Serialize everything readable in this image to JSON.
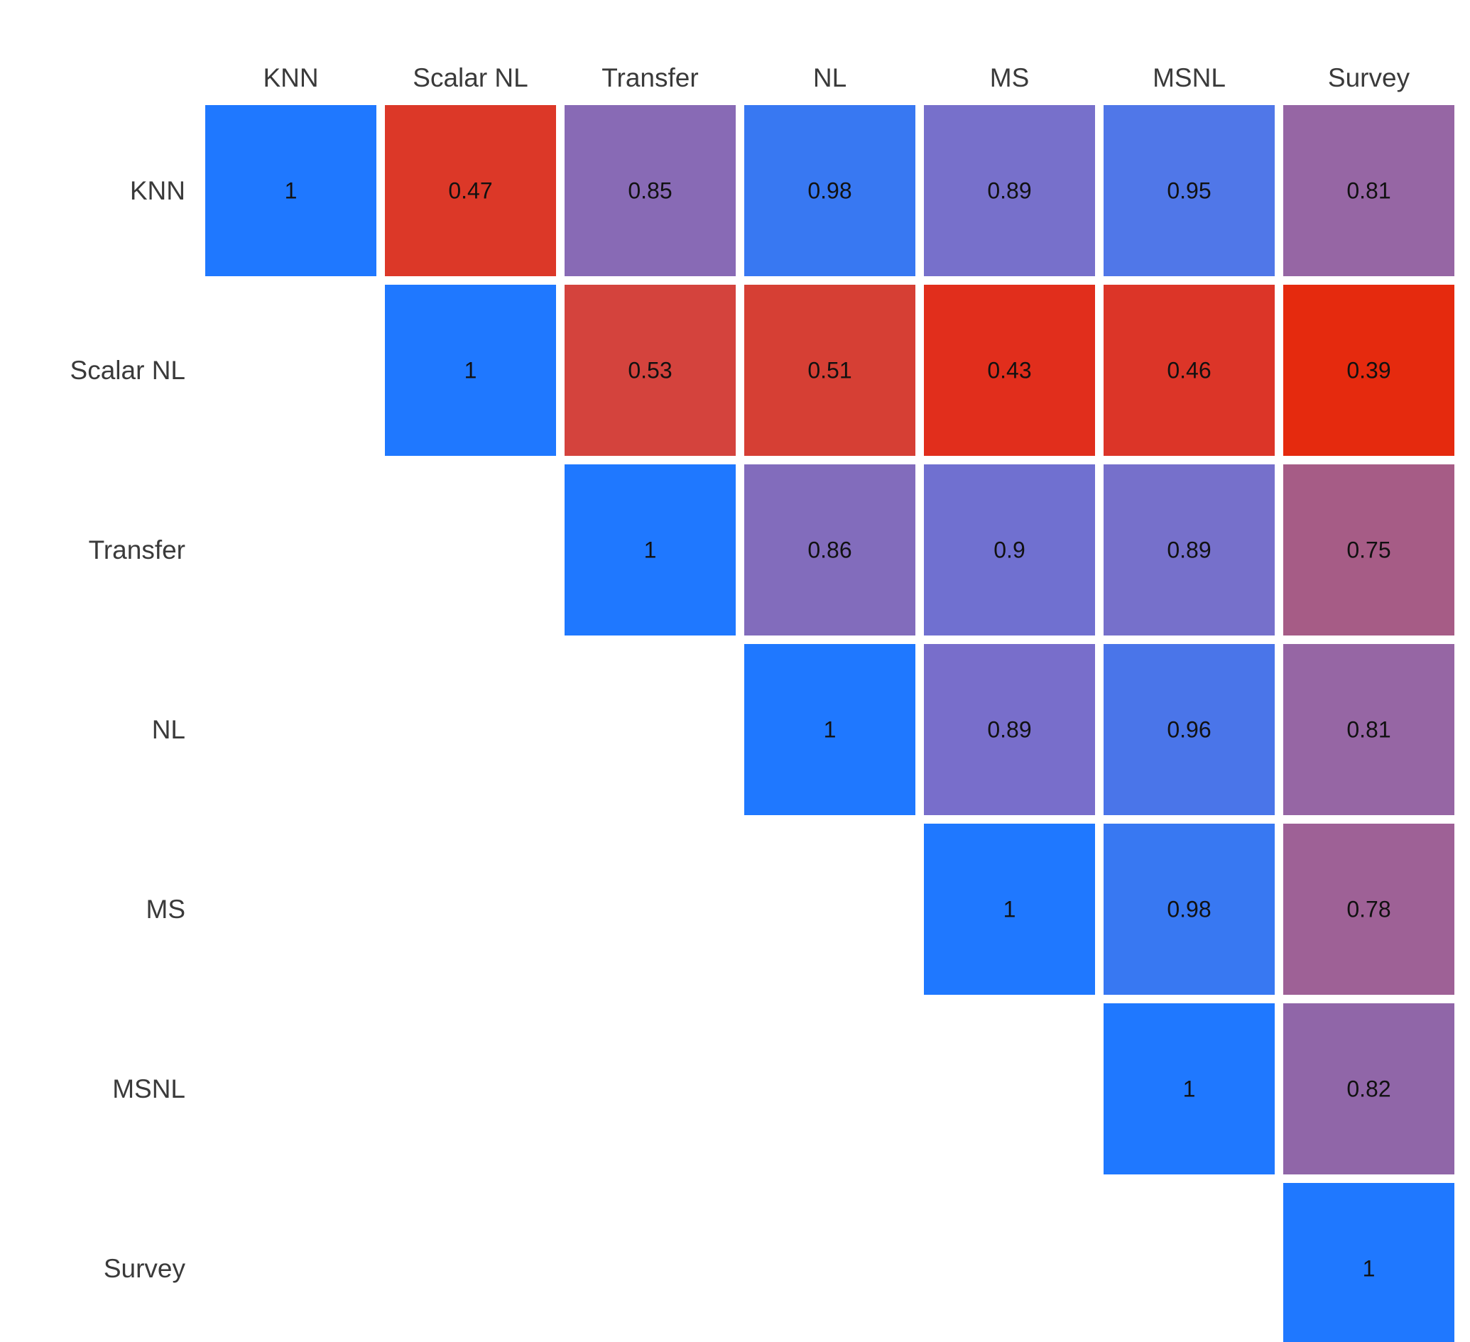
{
  "chart_data": {
    "type": "heatmap",
    "title": "",
    "xlabel": "",
    "ylabel": "",
    "shape": "upper-triangular",
    "labels": [
      "KNN",
      "Scalar NL",
      "Transfer",
      "NL",
      "MS",
      "MSNL",
      "Survey"
    ],
    "cells": [
      {
        "row": 0,
        "col": 0,
        "value": 1,
        "label": "1",
        "color": "#1f78ff"
      },
      {
        "row": 0,
        "col": 1,
        "value": 0.47,
        "label": "0.47",
        "color": "#dc3828"
      },
      {
        "row": 0,
        "col": 2,
        "value": 0.85,
        "label": "0.85",
        "color": "#886ab5"
      },
      {
        "row": 0,
        "col": 3,
        "value": 0.98,
        "label": "0.98",
        "color": "#3878f2"
      },
      {
        "row": 0,
        "col": 4,
        "value": 0.89,
        "label": "0.89",
        "color": "#7770cb"
      },
      {
        "row": 0,
        "col": 5,
        "value": 0.95,
        "label": "0.95",
        "color": "#5077e8"
      },
      {
        "row": 0,
        "col": 6,
        "value": 0.81,
        "label": "0.81",
        "color": "#9666a4"
      },
      {
        "row": 1,
        "col": 1,
        "value": 1,
        "label": "1",
        "color": "#1f78ff"
      },
      {
        "row": 1,
        "col": 2,
        "value": 0.53,
        "label": "0.53",
        "color": "#d4433d"
      },
      {
        "row": 1,
        "col": 3,
        "value": 0.51,
        "label": "0.51",
        "color": "#d63f34"
      },
      {
        "row": 1,
        "col": 4,
        "value": 0.43,
        "label": "0.43",
        "color": "#e12e1c"
      },
      {
        "row": 1,
        "col": 5,
        "value": 0.46,
        "label": "0.46",
        "color": "#dc3528"
      },
      {
        "row": 1,
        "col": 6,
        "value": 0.39,
        "label": "0.39",
        "color": "#e52a0e"
      },
      {
        "row": 2,
        "col": 2,
        "value": 1,
        "label": "1",
        "color": "#1f78ff"
      },
      {
        "row": 2,
        "col": 3,
        "value": 0.86,
        "label": "0.86",
        "color": "#826cbc"
      },
      {
        "row": 2,
        "col": 4,
        "value": 0.9,
        "label": "0.9",
        "color": "#7070d0"
      },
      {
        "row": 2,
        "col": 5,
        "value": 0.89,
        "label": "0.89",
        "color": "#7670cb"
      },
      {
        "row": 2,
        "col": 6,
        "value": 0.75,
        "label": "0.75",
        "color": "#a65c86"
      },
      {
        "row": 3,
        "col": 3,
        "value": 1,
        "label": "1",
        "color": "#1f78ff"
      },
      {
        "row": 3,
        "col": 4,
        "value": 0.89,
        "label": "0.89",
        "color": "#786ecb"
      },
      {
        "row": 3,
        "col": 5,
        "value": 0.96,
        "label": "0.96",
        "color": "#4a75e9"
      },
      {
        "row": 3,
        "col": 6,
        "value": 0.81,
        "label": "0.81",
        "color": "#9666a4"
      },
      {
        "row": 4,
        "col": 4,
        "value": 1,
        "label": "1",
        "color": "#1f78ff"
      },
      {
        "row": 4,
        "col": 5,
        "value": 0.98,
        "label": "0.98",
        "color": "#3878f2"
      },
      {
        "row": 4,
        "col": 6,
        "value": 0.78,
        "label": "0.78",
        "color": "#9e6196"
      },
      {
        "row": 5,
        "col": 5,
        "value": 1,
        "label": "1",
        "color": "#1f78ff"
      },
      {
        "row": 5,
        "col": 6,
        "value": 0.82,
        "label": "0.82",
        "color": "#9066a8"
      },
      {
        "row": 6,
        "col": 6,
        "value": 1,
        "label": "1",
        "color": "#1f78ff"
      }
    ]
  }
}
